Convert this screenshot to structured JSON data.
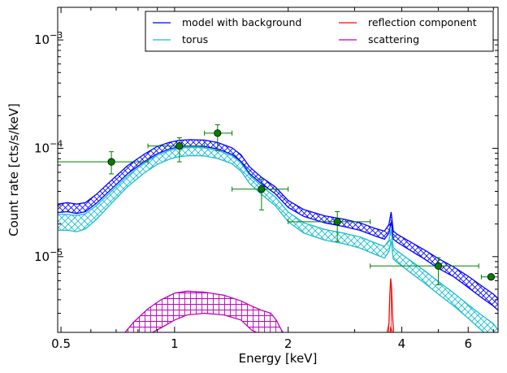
{
  "chart_data": {
    "type": "line",
    "xlabel": "Energy [keV]",
    "ylabel": "Count rate [cts/s/keV]",
    "xscale": "log",
    "yscale": "log",
    "xlim": [
      0.49,
      7.2
    ],
    "ylim": [
      2e-06,
      0.002
    ],
    "legend_position": "top-right",
    "grid": false,
    "x_ticks": [
      {
        "value": 0.5,
        "label": "0.5"
      },
      {
        "value": 1,
        "label": "1"
      },
      {
        "value": 2,
        "label": "2"
      },
      {
        "value": 4,
        "label": "4"
      },
      {
        "value": 6,
        "label": "6"
      }
    ],
    "y_ticks": [
      {
        "value": 1e-05,
        "label": "10",
        "exp": "−5"
      },
      {
        "value": 0.0001,
        "label": "10",
        "exp": "−4"
      },
      {
        "value": 0.001,
        "label": "10",
        "exp": "−3"
      }
    ],
    "series": [
      {
        "name": "model with background",
        "color": "#0000ff",
        "x": [
          0.49,
          0.52,
          0.55,
          0.58,
          0.62,
          0.68,
          0.75,
          0.83,
          0.9,
          0.97,
          1.03,
          1.1,
          1.2,
          1.3,
          1.42,
          1.5,
          1.58,
          1.7,
          1.85,
          2.0,
          2.2,
          2.5,
          2.8,
          3.1,
          3.4,
          3.6,
          3.7,
          3.75,
          3.8,
          3.9,
          4.2,
          4.6,
          5.0,
          5.5,
          6.0,
          6.5,
          7.0,
          7.2
        ],
        "low": [
          2.55e-05,
          2.6e-05,
          2.5e-05,
          2.6e-05,
          3.1e-05,
          4.2e-05,
          5.8e-05,
          7.5e-05,
          8.9e-05,
          9.85e-05,
          0.0001035,
          0.000105,
          0.000104,
          9.85e-05,
          8.8e-05,
          7.55e-05,
          5.85e-05,
          4.7e-05,
          3.8e-05,
          2.85e-05,
          2.35e-05,
          2.05e-05,
          1.9e-05,
          1.75e-05,
          1.55e-05,
          1.45e-05,
          1.65e-05,
          2.1e-05,
          1.45e-05,
          1.35e-05,
          1.15e-05,
          9.5e-06,
          7.8e-06,
          6.5e-06,
          5.2e-06,
          4.2e-06,
          3.5e-06,
          3.2e-06
        ],
        "high": [
          3.05e-05,
          3.15e-05,
          3.05e-05,
          3.15e-05,
          3.75e-05,
          5.05e-05,
          6.9e-05,
          8.8e-05,
          0.000104,
          0.0001135,
          0.0001185,
          0.00012,
          0.000119,
          0.000113,
          0.000101,
          8.7e-05,
          6.75e-05,
          5.4e-05,
          4.4e-05,
          3.3e-05,
          2.72e-05,
          2.38e-05,
          2.22e-05,
          2.05e-05,
          1.82e-05,
          1.72e-05,
          1.98e-05,
          2.58e-05,
          1.72e-05,
          1.6e-05,
          1.38e-05,
          1.15e-05,
          9.6e-06,
          8e-06,
          6.6e-06,
          5.4e-06,
          4.5e-06,
          4.1e-06
        ]
      },
      {
        "name": "torus",
        "color": "#17becf",
        "x": [
          0.49,
          0.52,
          0.55,
          0.58,
          0.62,
          0.68,
          0.75,
          0.83,
          0.9,
          0.97,
          1.03,
          1.1,
          1.2,
          1.3,
          1.42,
          1.5,
          1.58,
          1.7,
          1.85,
          2.0,
          2.2,
          2.5,
          2.8,
          3.1,
          3.4,
          3.6,
          3.7,
          3.75,
          3.8,
          3.9,
          4.2,
          4.6,
          5.0,
          5.5,
          6.0,
          6.5,
          7.0,
          7.2
        ],
        "low": [
          1.75e-05,
          1.75e-05,
          1.7e-05,
          1.8e-05,
          2.2e-05,
          3.1e-05,
          4.4e-05,
          5.9e-05,
          7.1e-05,
          7.95e-05,
          8.4e-05,
          8.55e-05,
          8.5e-05,
          8.05e-05,
          7.2e-05,
          6.15e-05,
          4.75e-05,
          3.75e-05,
          2.95e-05,
          2.1e-05,
          1.65e-05,
          1.42e-05,
          1.32e-05,
          1.2e-05,
          1.05e-05,
          9.7e-06,
          1.12e-05,
          1.4e-05,
          9.5e-06,
          8.8e-06,
          7.2e-06,
          5.7e-06,
          4.5e-06,
          3.5e-06,
          2.7e-06,
          2.1e-06,
          1.7e-06,
          1.5e-06
        ],
        "high": [
          2.45e-05,
          2.45e-05,
          2.4e-05,
          2.48e-05,
          2.95e-05,
          4e-05,
          5.55e-05,
          7.25e-05,
          8.65e-05,
          9.55e-05,
          0.0001005,
          0.000102,
          0.000101,
          9.55e-05,
          8.55e-05,
          7.3e-05,
          5.65e-05,
          4.48e-05,
          3.55e-05,
          2.58e-05,
          2.05e-05,
          1.78e-05,
          1.65e-05,
          1.52e-05,
          1.34e-05,
          1.24e-05,
          1.42e-05,
          1.78e-05,
          1.21e-05,
          1.12e-05,
          9.3e-06,
          7.4e-06,
          5.9e-06,
          4.6e-06,
          3.6e-06,
          2.9e-06,
          2.4e-06,
          2.1e-06
        ]
      },
      {
        "name": "reflection component",
        "color": "#ff0000",
        "x": [
          3.58,
          3.65,
          3.7,
          3.72,
          3.74,
          3.76,
          3.78,
          3.81,
          3.86
        ],
        "low": [
          1.9e-06,
          1.9e-06,
          1.9e-06,
          1.9e-06,
          2.2e-06,
          2.1e-06,
          1.9e-06,
          1.9e-06,
          1.9e-06
        ],
        "high": [
          1.9e-06,
          1.9e-06,
          2.4e-06,
          4.5e-06,
          6.3e-06,
          5e-06,
          3e-06,
          1.9e-06,
          1.9e-06
        ]
      },
      {
        "name": "scattering",
        "color": "#bf00bf",
        "x": [
          0.73,
          0.78,
          0.85,
          0.92,
          1.0,
          1.08,
          1.2,
          1.35,
          1.5,
          1.6,
          1.7,
          1.8,
          1.86,
          1.92,
          1.96
        ],
        "low": [
          1.9e-06,
          1.9e-06,
          1.9e-06,
          2.2e-06,
          2.6e-06,
          2.9e-06,
          3e-06,
          2.9e-06,
          2.6e-06,
          2.1e-06,
          1.9e-06,
          1.9e-06,
          1.9e-06,
          1.9e-06,
          1.9e-06
        ],
        "high": [
          1.9e-06,
          2.5e-06,
          3.3e-06,
          4e-06,
          4.6e-06,
          4.8e-06,
          4.7e-06,
          4.4e-06,
          3.9e-06,
          3.5e-06,
          3.2e-06,
          3e-06,
          2.6e-06,
          2.1e-06,
          1.9e-06
        ]
      }
    ],
    "data_points": {
      "color": "#007f00",
      "points": [
        {
          "x": 0.68,
          "xlo": 0.49,
          "xhi": 0.85,
          "y": 7.5e-05,
          "ylo": 5.8e-05,
          "yhi": 9.3e-05
        },
        {
          "x": 1.03,
          "xlo": 0.85,
          "xhi": 1.2,
          "y": 0.000105,
          "ylo": 7.5e-05,
          "yhi": 0.000125
        },
        {
          "x": 1.3,
          "xlo": 1.2,
          "xhi": 1.42,
          "y": 0.000138,
          "ylo": 9.5e-05,
          "yhi": 0.000165
        },
        {
          "x": 1.7,
          "xlo": 1.42,
          "xhi": 2.0,
          "y": 4.2e-05,
          "ylo": 2.7e-05,
          "yhi": 5.2e-05
        },
        {
          "x": 2.7,
          "xlo": 2.0,
          "xhi": 3.3,
          "y": 2.1e-05,
          "ylo": 1.38e-05,
          "yhi": 2.6e-05
        },
        {
          "x": 5.0,
          "xlo": 3.3,
          "xhi": 6.4,
          "y": 8.2e-06,
          "ylo": 5.5e-06,
          "yhi": 9.8e-06
        },
        {
          "x": 6.9,
          "xlo": 6.5,
          "xhi": 7.2,
          "y": 6.5e-06,
          "ylo": 6.5e-06,
          "yhi": 6.5e-06
        }
      ]
    }
  }
}
